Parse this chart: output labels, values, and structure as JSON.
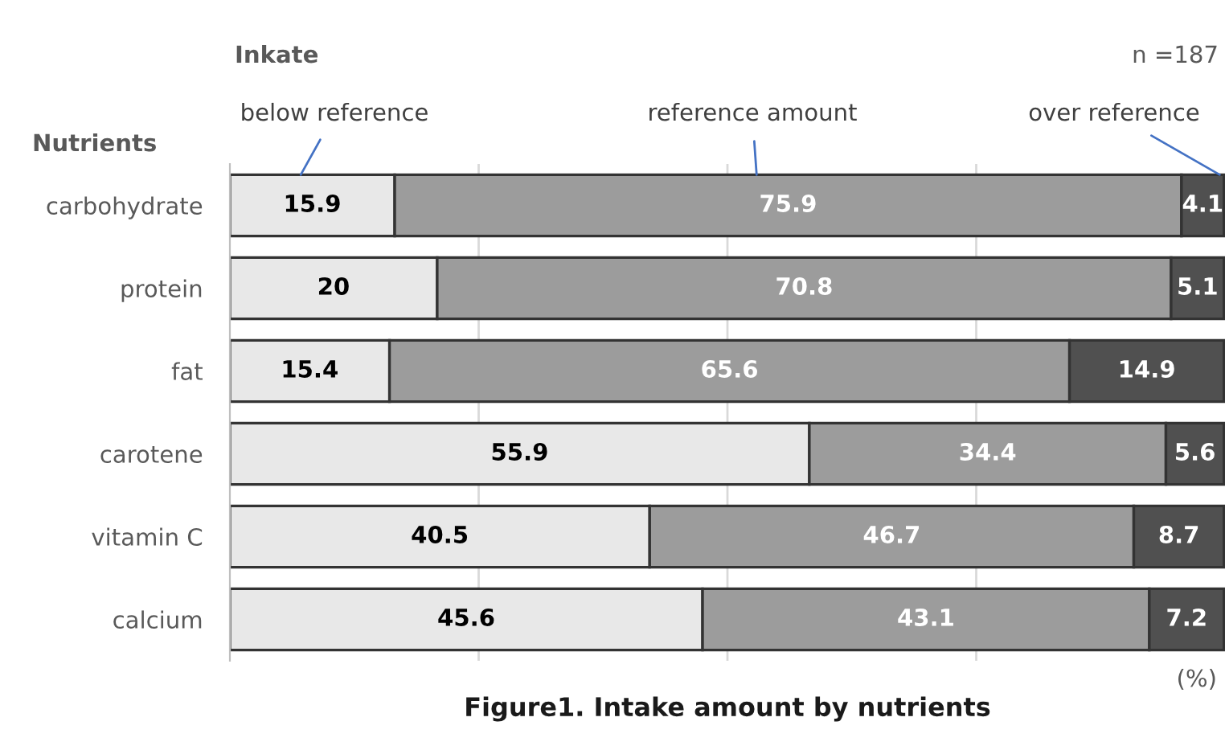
{
  "chart_data": {
    "type": "bar",
    "orientation": "horizontal",
    "stacked": true,
    "title": "Figure1. Intake amount by nutrients",
    "legend_title": "Inkate",
    "ylabel": "Nutrients",
    "xlabel": "(%)",
    "annotations": [
      "n =187"
    ],
    "categories": [
      "carbohydrate",
      "protein",
      "fat",
      "carotene",
      "vitamin C",
      "calcium"
    ],
    "series": [
      {
        "name": "below reference",
        "color": "#e8e8e8",
        "values": [
          15.9,
          20,
          15.4,
          55.9,
          40.5,
          45.6
        ]
      },
      {
        "name": "reference amount",
        "color": "#9c9c9c",
        "values": [
          75.9,
          70.8,
          65.6,
          34.4,
          46.7,
          43.1
        ]
      },
      {
        "name": "over reference",
        "color": "#505050",
        "values": [
          4.1,
          5.1,
          14.9,
          5.6,
          8.7,
          7.2
        ]
      }
    ],
    "xlim": [
      0,
      96
    ],
    "xticks": [
      {
        "value": 24,
        "label": null
      },
      {
        "value": 48,
        "label": null
      },
      {
        "value": 72,
        "label": null
      }
    ],
    "grid": "x",
    "legend": false,
    "tick_labels": "y",
    "data_labels": true
  }
}
